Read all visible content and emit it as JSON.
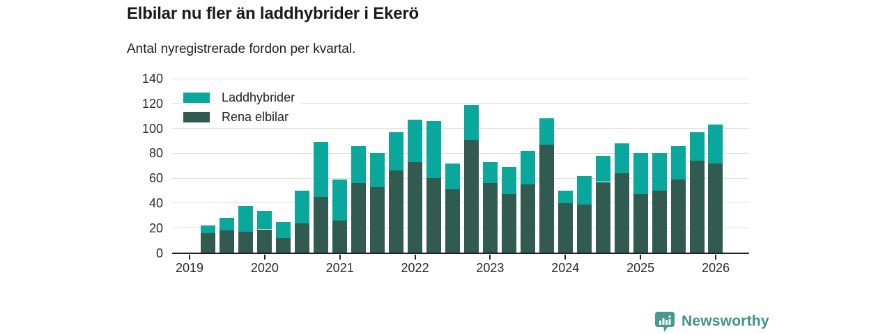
{
  "header": {
    "title": "Elbilar nu fler än laddhybrider i Ekerö",
    "subtitle": "Antal nyregistrerade fordon per kvartal."
  },
  "legend": [
    {
      "label": "Laddhybrider",
      "color": "#0aa79c"
    },
    {
      "label": "Rena elbilar",
      "color": "#315a50"
    }
  ],
  "footer": {
    "brand": "Newsworthy"
  },
  "colors": {
    "laddhybrider": "#0aa79c",
    "rena_elbilar": "#315a50",
    "gridline": "#e0e0e0",
    "axis": "#222222",
    "title_text": "#1a1a1a",
    "tick_text": "#2b2b2b",
    "brand_text": "#3d928a",
    "brand_icon": "#479890"
  },
  "chart_data": {
    "type": "bar",
    "stacked": true,
    "title": "Elbilar nu fler än laddhybrider i Ekerö",
    "subtitle": "Antal nyregistrerade fordon per kvartal.",
    "categories": [
      "2019-Q2",
      "2019-Q3",
      "2019-Q4",
      "2020-Q1",
      "2020-Q2",
      "2020-Q3",
      "2020-Q4",
      "2021-Q1",
      "2021-Q2",
      "2021-Q3",
      "2021-Q4",
      "2022-Q1",
      "2022-Q2",
      "2022-Q3",
      "2022-Q4",
      "2023-Q1",
      "2023-Q2",
      "2023-Q3",
      "2023-Q4",
      "2024-Q1",
      "2024-Q2",
      "2024-Q3",
      "2024-Q4",
      "2025-Q1",
      "2025-Q2",
      "2025-Q3",
      "2025-Q4",
      "2026-Q1"
    ],
    "series": [
      {
        "name": "Rena elbilar",
        "color": "#315a50",
        "values": [
          16,
          18,
          17,
          19,
          12,
          24,
          45,
          26,
          56,
          53,
          66,
          73,
          60,
          51,
          91,
          56,
          47,
          55,
          87,
          40,
          39,
          57,
          64,
          47,
          50,
          59,
          74,
          72
        ]
      },
      {
        "name": "Laddhybrider",
        "color": "#0aa79c",
        "values": [
          6,
          10,
          21,
          15,
          13,
          26,
          44,
          33,
          30,
          27,
          31,
          34,
          46,
          21,
          28,
          17,
          22,
          27,
          21,
          10,
          23,
          21,
          24,
          33,
          30,
          27,
          23,
          31
        ]
      }
    ],
    "totals": [
      22,
      28,
      38,
      34,
      25,
      50,
      89,
      59,
      86,
      80,
      97,
      107,
      106,
      72,
      119,
      73,
      69,
      82,
      108,
      50,
      62,
      78,
      88,
      80,
      80,
      86,
      97,
      103
    ],
    "xlabel": "",
    "ylabel": "",
    "ylim": [
      0,
      140
    ],
    "yticks": [
      0,
      20,
      40,
      60,
      80,
      100,
      120,
      140
    ],
    "xticks": [
      "2019",
      "2020",
      "2021",
      "2022",
      "2023",
      "2024",
      "2025",
      "2026"
    ],
    "first_bar_quarter_offset": 1,
    "grid": true,
    "legend_position": "top-left"
  }
}
